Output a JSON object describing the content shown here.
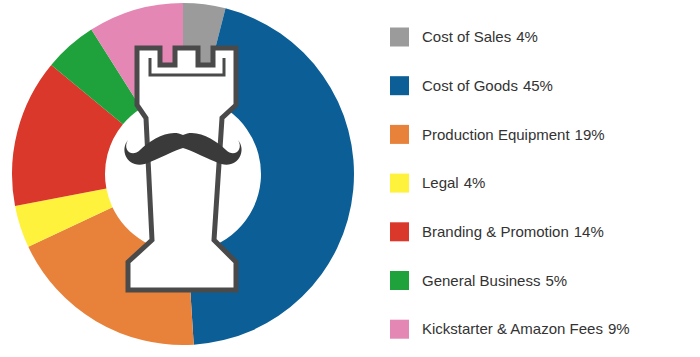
{
  "chart_data": {
    "type": "donut",
    "categories": [
      "Cost of Sales",
      "Cost of Goods",
      "Production Equipment",
      "Legal",
      "Branding & Promotion",
      "General Business",
      "Kickstarter & Amazon Fees"
    ],
    "values": [
      4,
      45,
      19,
      4,
      14,
      5,
      9
    ],
    "value_labels": [
      "4%",
      "45%",
      "19%",
      "4%",
      "14%",
      "5%",
      "9%"
    ],
    "colors": [
      "#9b9b9b",
      "#0b5e96",
      "#e8823a",
      "#fff23c",
      "#d9382b",
      "#1fa23c",
      "#e487b5"
    ],
    "legend": "right"
  }
}
